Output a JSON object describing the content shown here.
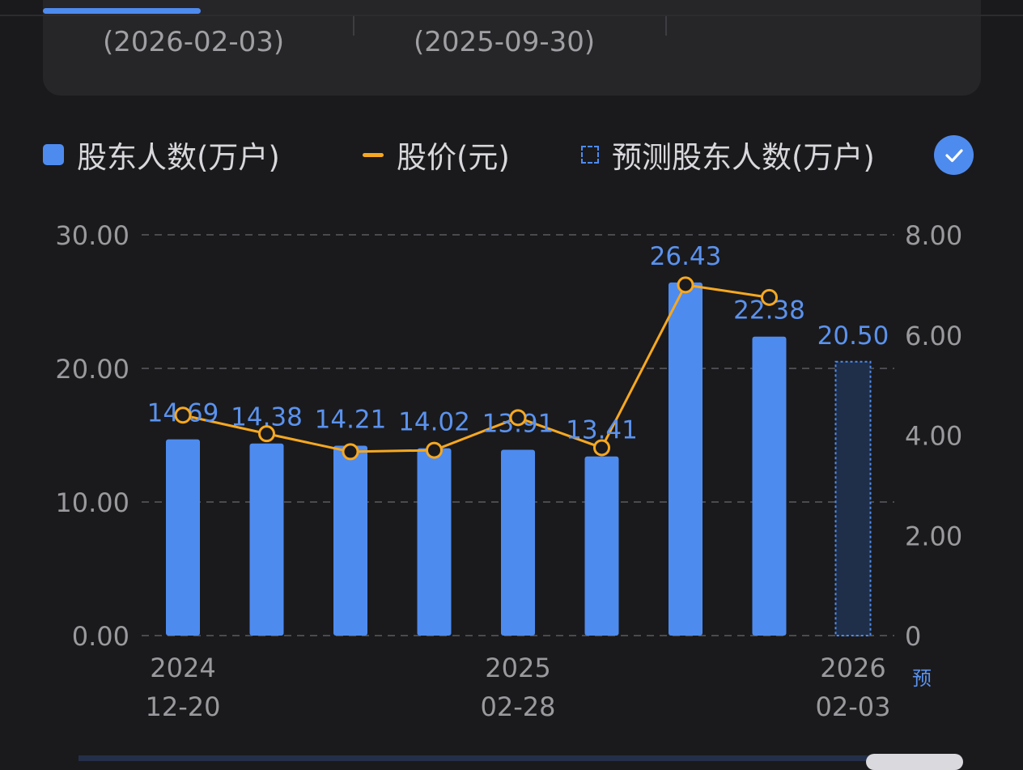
{
  "header": {
    "date_left": "(2026-02-03)",
    "date_right": "(2025-09-30)"
  },
  "legend": {
    "bar_label": "股东人数(万户)",
    "line_label": "股价(元)",
    "forecast_label": "预测股东人数(万户)"
  },
  "icons": {
    "check": "check-icon"
  },
  "colors": {
    "background": "#1a1a1c",
    "bar": "#4e8bef",
    "line": "#f6a821",
    "forecast_fill": "#1f2f49",
    "axis_text": "#9a9a9e",
    "grid": "#4a4a4f",
    "value_label": "#5b92ee"
  },
  "chart_data": {
    "type": "bar",
    "title": "",
    "xlabel": "",
    "ylabel": "",
    "ylim": [
      0,
      30
    ],
    "y2lim": [
      0,
      8
    ],
    "y_ticks": [
      "30.00",
      "20.00",
      "10.00",
      "0.00"
    ],
    "y2_ticks": [
      "8.00",
      "6.00",
      "4.00",
      "2.00",
      "0"
    ],
    "x_tick_labels": [
      {
        "index": 0,
        "year": "2024",
        "date": "12-20"
      },
      {
        "index": 4,
        "year": "2025",
        "date": "02-28"
      },
      {
        "index": 8,
        "year": "2026",
        "date": "02-03",
        "tag": "预"
      }
    ],
    "series": [
      {
        "name": "股东人数(万户)",
        "type": "bar",
        "values": [
          14.69,
          14.38,
          14.21,
          14.02,
          13.91,
          13.41,
          26.43,
          22.38,
          20.5
        ],
        "labels": [
          "14.69",
          "14.38",
          "14.21",
          "14.02",
          "13.91",
          "13.41",
          "26.43",
          "22.38",
          "20.50"
        ],
        "forecast_index": 8
      },
      {
        "name": "股价(元)",
        "type": "line",
        "axis": "right",
        "values": [
          4.4,
          4.03,
          3.67,
          3.7,
          4.35,
          3.75,
          7.0,
          6.75,
          null
        ]
      }
    ],
    "legend_position": "top",
    "grid": true
  }
}
